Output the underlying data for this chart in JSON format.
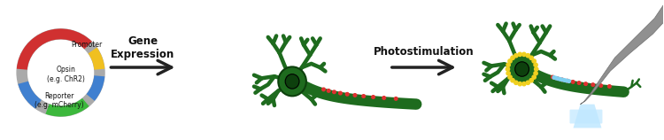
{
  "background_color": "#ffffff",
  "fig_width": 7.5,
  "fig_height": 1.58,
  "dpi": 100,
  "neuron_color": "#1e6b1e",
  "neuron_dark": "#0d400d",
  "axon_color": "#1e6b1e",
  "dot_red": "#e03030",
  "dot_yellow": "#f0d020",
  "dot_blue": "#80d0f0",
  "probe_fill": "#909090",
  "probe_edge": "#707070",
  "light_fill": "#c0e8ff",
  "plasmid_ring": "#aaaaaa",
  "plasmid_green": "#3cb83c",
  "plasmid_blue": "#4080d0",
  "plasmid_red": "#d03030",
  "plasmid_yellow": "#f0c020",
  "arrow_color": "#222222",
  "text_color": "#111111",
  "gene_expr_label": "Gene\nExpression",
  "photostim_label": "Photostimulation",
  "label_fontsize": 8.5,
  "plasmid_label_fontsize": 5.5,
  "promoter_text": "Promoter",
  "opsin_text": "Opsin\n(e.g. ChR2)",
  "reporter_text": "Reporter\n(e.g. mCherry)"
}
